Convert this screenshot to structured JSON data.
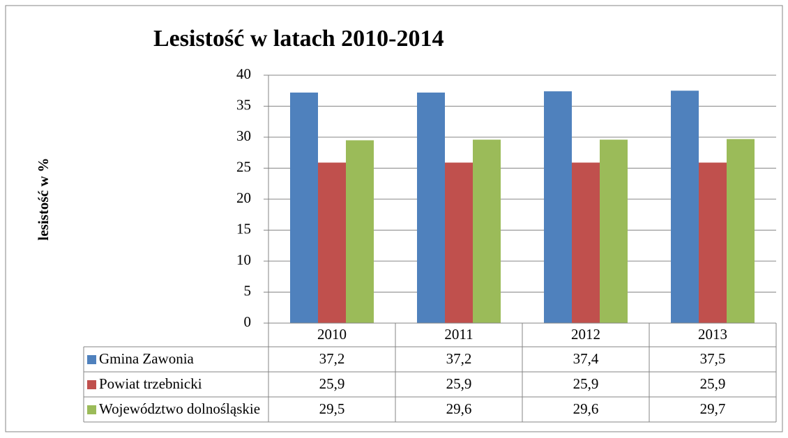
{
  "chart_data": {
    "type": "bar",
    "title": "Lesistość w latach 2010-2014",
    "y_label": "lesistość w %",
    "categories": [
      "2010",
      "2011",
      "2012",
      "2013"
    ],
    "series": [
      {
        "name": "Gmina Zawonia",
        "color": "#4f81bd",
        "values": [
          37.2,
          37.2,
          37.4,
          37.5
        ],
        "value_labels": [
          "37,2",
          "37,2",
          "37,4",
          "37,5"
        ]
      },
      {
        "name": "Powiat trzebnicki",
        "color": "#c0504d",
        "values": [
          25.9,
          25.9,
          25.9,
          25.9
        ],
        "value_labels": [
          "25,9",
          "25,9",
          "25,9",
          "25,9"
        ]
      },
      {
        "name": "Województwo dolnośląskie",
        "color": "#9bbb59",
        "values": [
          29.5,
          29.6,
          29.6,
          29.7
        ],
        "value_labels": [
          "29,5",
          "29,6",
          "29,6",
          "29,7"
        ]
      }
    ],
    "ylim": [
      0,
      40
    ],
    "yticks": [
      0,
      5,
      10,
      15,
      20,
      25,
      30,
      35,
      40
    ],
    "grid": true,
    "data_table": true
  }
}
